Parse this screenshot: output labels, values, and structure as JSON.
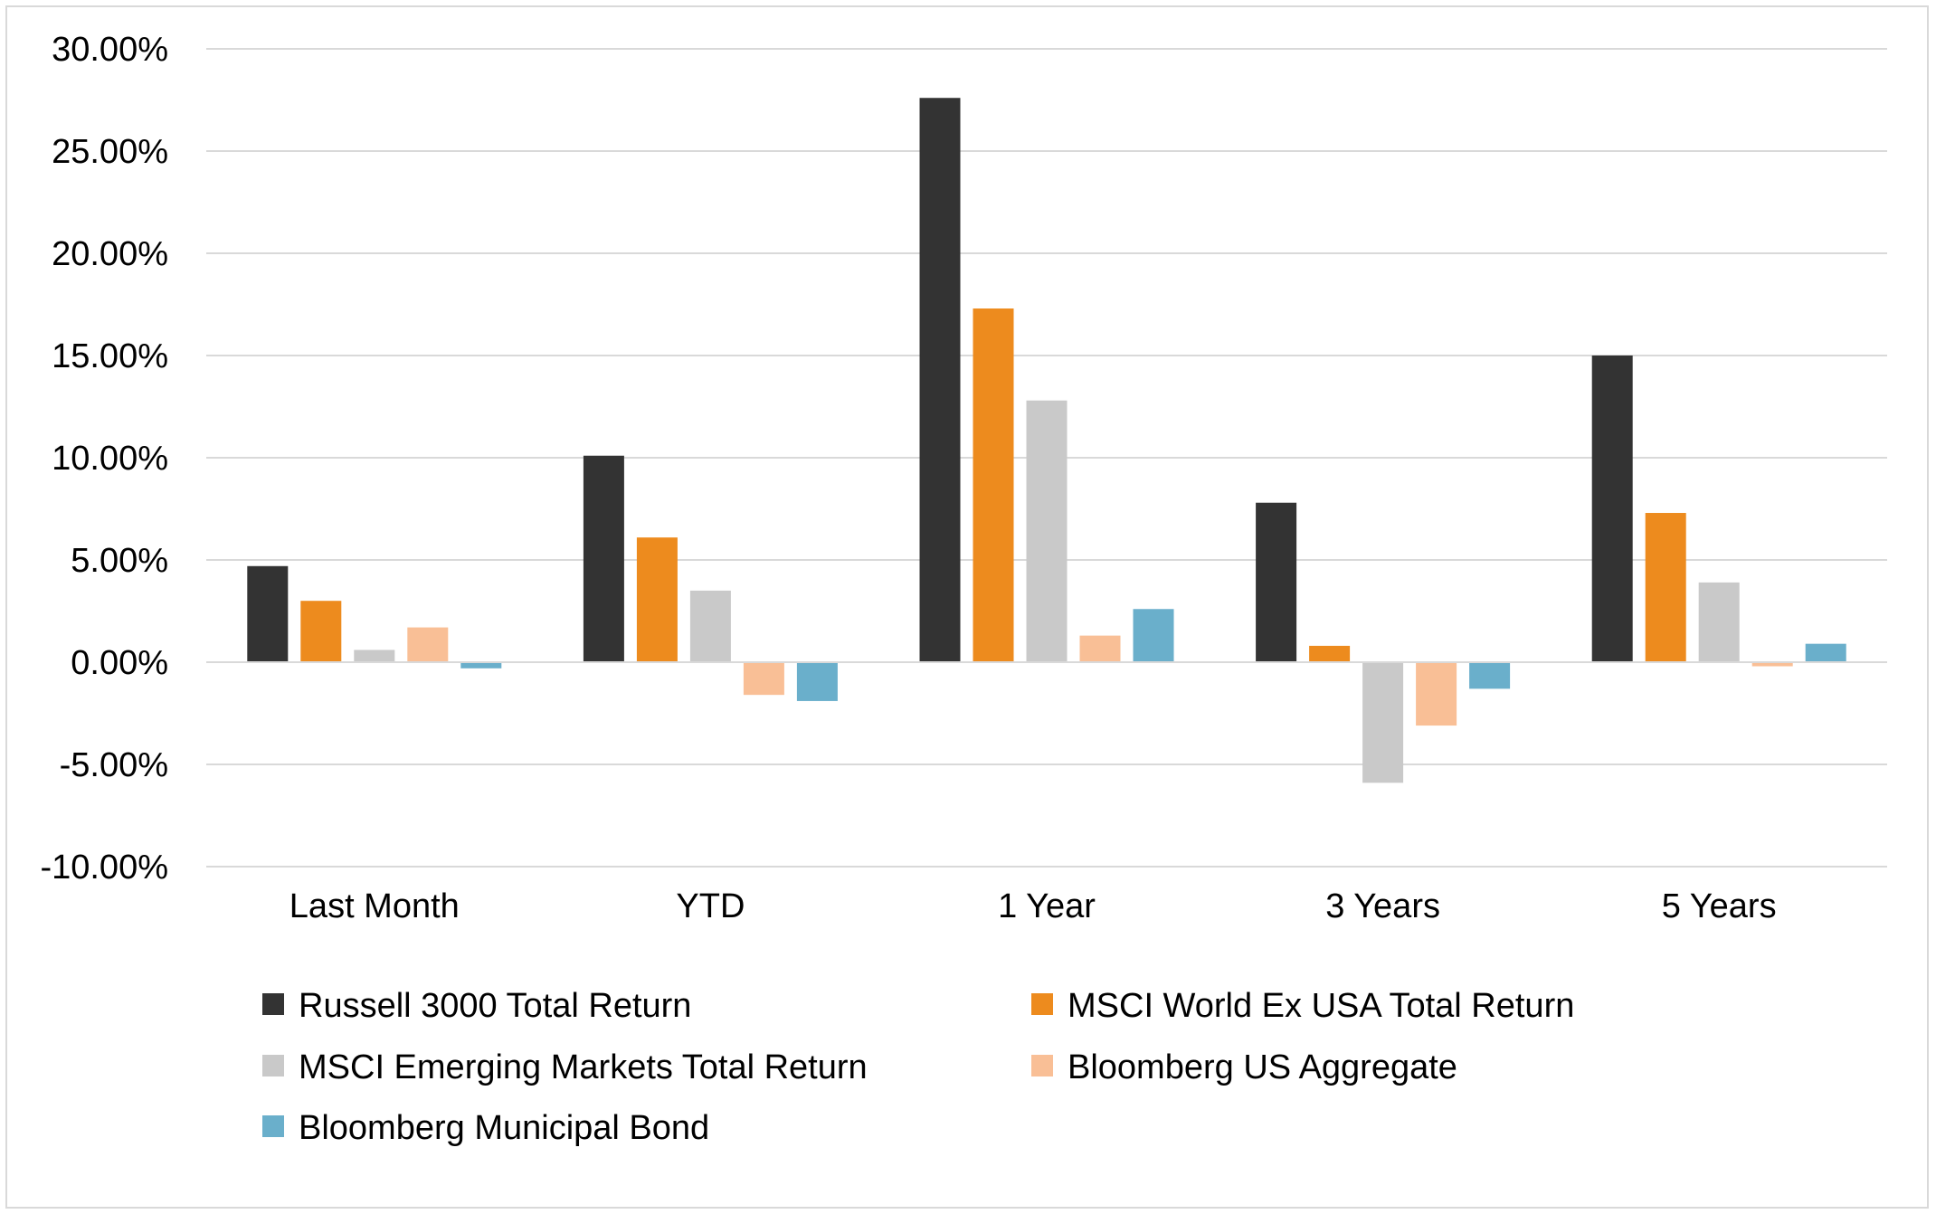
{
  "chart_data": {
    "type": "bar",
    "title": "",
    "xlabel": "",
    "ylabel": "",
    "categories": [
      "Last Month",
      "YTD",
      "1 Year",
      "3 Years",
      "5 Years"
    ],
    "ylim": [
      -10,
      30
    ],
    "yticks": [
      30,
      25,
      20,
      15,
      10,
      5,
      0,
      -5,
      -10
    ],
    "ytick_labels": [
      "30.00%",
      "25.00%",
      "20.00%",
      "15.00%",
      "10.00%",
      "5.00%",
      "0.00%",
      "-5.00%",
      "-10.00%"
    ],
    "grid": true,
    "legend_position": "bottom",
    "series": [
      {
        "name": "Russell 3000 Total Return",
        "color": "#333333",
        "values": [
          4.7,
          10.1,
          27.6,
          7.8,
          15.0
        ]
      },
      {
        "name": "MSCI World Ex USA Total Return",
        "color": "#ED8B1E",
        "values": [
          3.0,
          6.1,
          17.3,
          0.8,
          7.3
        ]
      },
      {
        "name": "MSCI Emerging Markets Total Return",
        "color": "#C9C9C9",
        "values": [
          0.6,
          3.5,
          12.8,
          -5.9,
          3.9
        ]
      },
      {
        "name": "Bloomberg US Aggregate",
        "color": "#F9BF96",
        "values": [
          1.7,
          -1.6,
          1.3,
          -3.1,
          -0.2
        ]
      },
      {
        "name": "Bloomberg Municipal Bond",
        "color": "#6AAFCB",
        "values": [
          -0.3,
          -1.9,
          2.6,
          -1.3,
          0.9
        ]
      }
    ]
  }
}
